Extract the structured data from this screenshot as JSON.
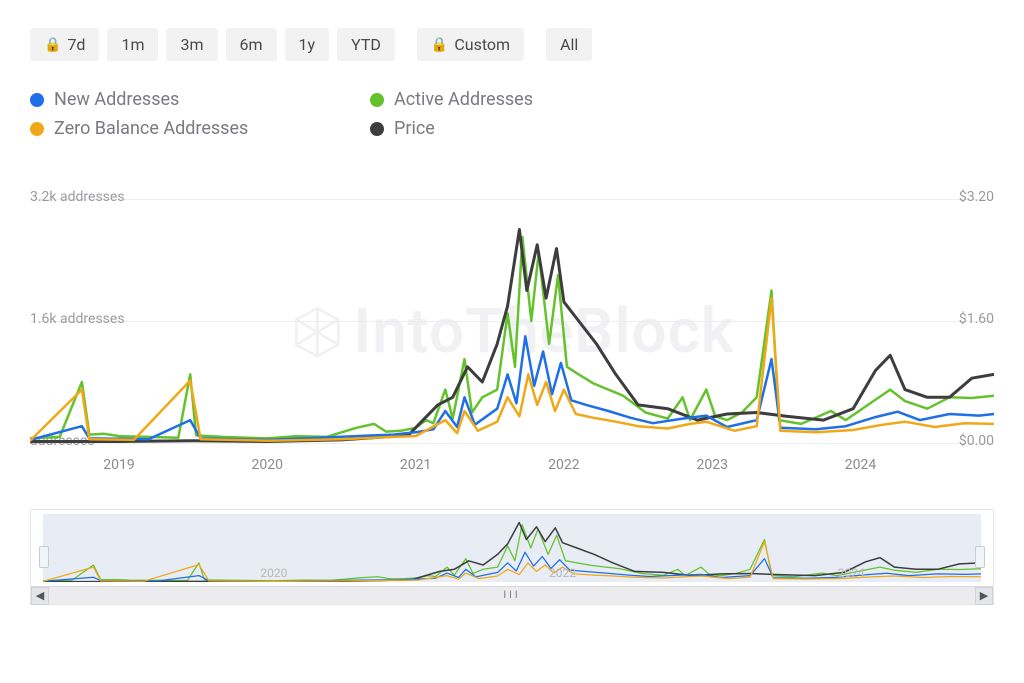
{
  "timerange": {
    "items": [
      {
        "label": "7d",
        "locked": true
      },
      {
        "label": "1m",
        "locked": false
      },
      {
        "label": "3m",
        "locked": false
      },
      {
        "label": "6m",
        "locked": false
      },
      {
        "label": "1y",
        "locked": false
      },
      {
        "label": "YTD",
        "locked": false
      },
      {
        "label": "Custom",
        "locked": true
      },
      {
        "label": "All",
        "locked": false
      }
    ]
  },
  "legend": [
    {
      "label": "New Addresses",
      "color": "#1f6fe6"
    },
    {
      "label": "Active Addresses",
      "color": "#64c22c"
    },
    {
      "label": "Zero Balance Addresses",
      "color": "#f0a818"
    },
    {
      "label": "Price",
      "color": "#3d3d3f"
    }
  ],
  "watermark": "IntoTheBlock",
  "chart": {
    "type": "line",
    "xlim": [
      2018.4,
      2024.9
    ],
    "x_ticks": [
      2019,
      2020,
      2021,
      2022,
      2023,
      2024
    ],
    "left_axis": {
      "label_suffix": " addresses",
      "ylim": [
        0,
        3200
      ],
      "ticks": [
        {
          "v": 0,
          "label": "addresses"
        },
        {
          "v": 1600,
          "label": "1.6k addresses"
        },
        {
          "v": 3200,
          "label": "3.2k addresses"
        }
      ],
      "grid_color": "#eceded"
    },
    "right_axis": {
      "ylim": [
        0,
        3.2
      ],
      "ticks": [
        {
          "v": 0.0,
          "label": "$0.00"
        },
        {
          "v": 1.6,
          "label": "$1.60"
        },
        {
          "v": 3.2,
          "label": "$3.20"
        }
      ]
    },
    "line_width_main": 3,
    "line_width_thin": 2.5,
    "series": [
      {
        "name": "Active Addresses",
        "color": "#64c22c",
        "axis": "left",
        "width": 2.5,
        "points": [
          [
            2018.4,
            60
          ],
          [
            2018.6,
            80
          ],
          [
            2018.75,
            800
          ],
          [
            2018.8,
            110
          ],
          [
            2018.9,
            120
          ],
          [
            2019.0,
            90
          ],
          [
            2019.2,
            80
          ],
          [
            2019.4,
            70
          ],
          [
            2019.48,
            900
          ],
          [
            2019.52,
            100
          ],
          [
            2019.7,
            80
          ],
          [
            2020.0,
            60
          ],
          [
            2020.2,
            90
          ],
          [
            2020.4,
            80
          ],
          [
            2020.6,
            200
          ],
          [
            2020.72,
            250
          ],
          [
            2020.8,
            150
          ],
          [
            2020.9,
            160
          ],
          [
            2021.0,
            200
          ],
          [
            2021.07,
            300
          ],
          [
            2021.12,
            260
          ],
          [
            2021.2,
            700
          ],
          [
            2021.25,
            320
          ],
          [
            2021.33,
            1100
          ],
          [
            2021.38,
            400
          ],
          [
            2021.45,
            600
          ],
          [
            2021.55,
            700
          ],
          [
            2021.62,
            1700
          ],
          [
            2021.67,
            1000
          ],
          [
            2021.72,
            2700
          ],
          [
            2021.78,
            1600
          ],
          [
            2021.83,
            2500
          ],
          [
            2021.9,
            1300
          ],
          [
            2021.96,
            2200
          ],
          [
            2022.02,
            1000
          ],
          [
            2022.1,
            900
          ],
          [
            2022.2,
            780
          ],
          [
            2022.3,
            700
          ],
          [
            2022.4,
            620
          ],
          [
            2022.55,
            400
          ],
          [
            2022.7,
            320
          ],
          [
            2022.8,
            600
          ],
          [
            2022.85,
            300
          ],
          [
            2022.96,
            700
          ],
          [
            2023.02,
            350
          ],
          [
            2023.1,
            300
          ],
          [
            2023.2,
            400
          ],
          [
            2023.3,
            600
          ],
          [
            2023.4,
            2000
          ],
          [
            2023.45,
            300
          ],
          [
            2023.6,
            250
          ],
          [
            2023.8,
            420
          ],
          [
            2023.9,
            300
          ],
          [
            2024.05,
            500
          ],
          [
            2024.2,
            700
          ],
          [
            2024.3,
            550
          ],
          [
            2024.45,
            450
          ],
          [
            2024.6,
            600
          ],
          [
            2024.75,
            590
          ],
          [
            2024.9,
            620
          ]
        ]
      },
      {
        "name": "Price",
        "color": "#3d3d3f",
        "axis": "right",
        "width": 3,
        "points": [
          [
            2018.4,
            0.02
          ],
          [
            2019.0,
            0.02
          ],
          [
            2019.5,
            0.03
          ],
          [
            2020.0,
            0.02
          ],
          [
            2020.5,
            0.04
          ],
          [
            2020.8,
            0.08
          ],
          [
            2020.95,
            0.1
          ],
          [
            2021.05,
            0.3
          ],
          [
            2021.15,
            0.5
          ],
          [
            2021.25,
            0.6
          ],
          [
            2021.35,
            1.0
          ],
          [
            2021.45,
            0.8
          ],
          [
            2021.55,
            1.3
          ],
          [
            2021.62,
            1.8
          ],
          [
            2021.7,
            2.8
          ],
          [
            2021.75,
            2.0
          ],
          [
            2021.82,
            2.6
          ],
          [
            2021.88,
            1.9
          ],
          [
            2021.95,
            2.55
          ],
          [
            2022.0,
            1.85
          ],
          [
            2022.1,
            1.6
          ],
          [
            2022.22,
            1.3
          ],
          [
            2022.35,
            0.9
          ],
          [
            2022.5,
            0.5
          ],
          [
            2022.7,
            0.45
          ],
          [
            2022.9,
            0.3
          ],
          [
            2023.1,
            0.38
          ],
          [
            2023.3,
            0.4
          ],
          [
            2023.5,
            0.35
          ],
          [
            2023.75,
            0.3
          ],
          [
            2023.95,
            0.45
          ],
          [
            2024.1,
            0.95
          ],
          [
            2024.2,
            1.15
          ],
          [
            2024.3,
            0.7
          ],
          [
            2024.45,
            0.6
          ],
          [
            2024.6,
            0.6
          ],
          [
            2024.75,
            0.85
          ],
          [
            2024.9,
            0.9
          ]
        ]
      },
      {
        "name": "New Addresses",
        "color": "#1f6fe6",
        "axis": "left",
        "width": 2.5,
        "points": [
          [
            2018.4,
            40
          ],
          [
            2018.75,
            220
          ],
          [
            2018.8,
            60
          ],
          [
            2019.2,
            50
          ],
          [
            2019.48,
            300
          ],
          [
            2019.55,
            60
          ],
          [
            2020.0,
            40
          ],
          [
            2020.6,
            90
          ],
          [
            2020.85,
            110
          ],
          [
            2021.0,
            140
          ],
          [
            2021.12,
            180
          ],
          [
            2021.2,
            420
          ],
          [
            2021.28,
            210
          ],
          [
            2021.33,
            600
          ],
          [
            2021.4,
            240
          ],
          [
            2021.55,
            450
          ],
          [
            2021.62,
            900
          ],
          [
            2021.68,
            520
          ],
          [
            2021.74,
            1400
          ],
          [
            2021.8,
            750
          ],
          [
            2021.86,
            1200
          ],
          [
            2021.92,
            640
          ],
          [
            2021.98,
            1050
          ],
          [
            2022.05,
            560
          ],
          [
            2022.15,
            500
          ],
          [
            2022.3,
            420
          ],
          [
            2022.45,
            330
          ],
          [
            2022.6,
            260
          ],
          [
            2022.8,
            320
          ],
          [
            2022.96,
            360
          ],
          [
            2023.1,
            210
          ],
          [
            2023.3,
            300
          ],
          [
            2023.4,
            1100
          ],
          [
            2023.46,
            200
          ],
          [
            2023.7,
            180
          ],
          [
            2023.9,
            220
          ],
          [
            2024.1,
            340
          ],
          [
            2024.25,
            410
          ],
          [
            2024.4,
            300
          ],
          [
            2024.6,
            380
          ],
          [
            2024.8,
            360
          ],
          [
            2024.9,
            380
          ]
        ]
      },
      {
        "name": "Zero Balance Addresses",
        "color": "#f0a818",
        "axis": "left",
        "width": 2.5,
        "points": [
          [
            2018.4,
            30
          ],
          [
            2018.75,
            700
          ],
          [
            2018.8,
            50
          ],
          [
            2019.1,
            40
          ],
          [
            2019.48,
            820
          ],
          [
            2019.55,
            50
          ],
          [
            2020.0,
            30
          ],
          [
            2020.5,
            50
          ],
          [
            2020.85,
            80
          ],
          [
            2021.0,
            90
          ],
          [
            2021.2,
            300
          ],
          [
            2021.28,
            130
          ],
          [
            2021.33,
            420
          ],
          [
            2021.42,
            160
          ],
          [
            2021.55,
            280
          ],
          [
            2021.62,
            600
          ],
          [
            2021.7,
            350
          ],
          [
            2021.76,
            900
          ],
          [
            2021.82,
            500
          ],
          [
            2021.88,
            800
          ],
          [
            2021.94,
            420
          ],
          [
            2022.0,
            700
          ],
          [
            2022.08,
            380
          ],
          [
            2022.2,
            330
          ],
          [
            2022.35,
            280
          ],
          [
            2022.5,
            220
          ],
          [
            2022.7,
            190
          ],
          [
            2022.85,
            250
          ],
          [
            2022.96,
            280
          ],
          [
            2023.15,
            160
          ],
          [
            2023.3,
            220
          ],
          [
            2023.4,
            1900
          ],
          [
            2023.46,
            160
          ],
          [
            2023.7,
            140
          ],
          [
            2023.95,
            170
          ],
          [
            2024.15,
            240
          ],
          [
            2024.3,
            280
          ],
          [
            2024.5,
            210
          ],
          [
            2024.7,
            260
          ],
          [
            2024.9,
            250
          ]
        ]
      }
    ]
  },
  "navigator": {
    "x_labels": [
      2020,
      2022,
      2024
    ]
  }
}
